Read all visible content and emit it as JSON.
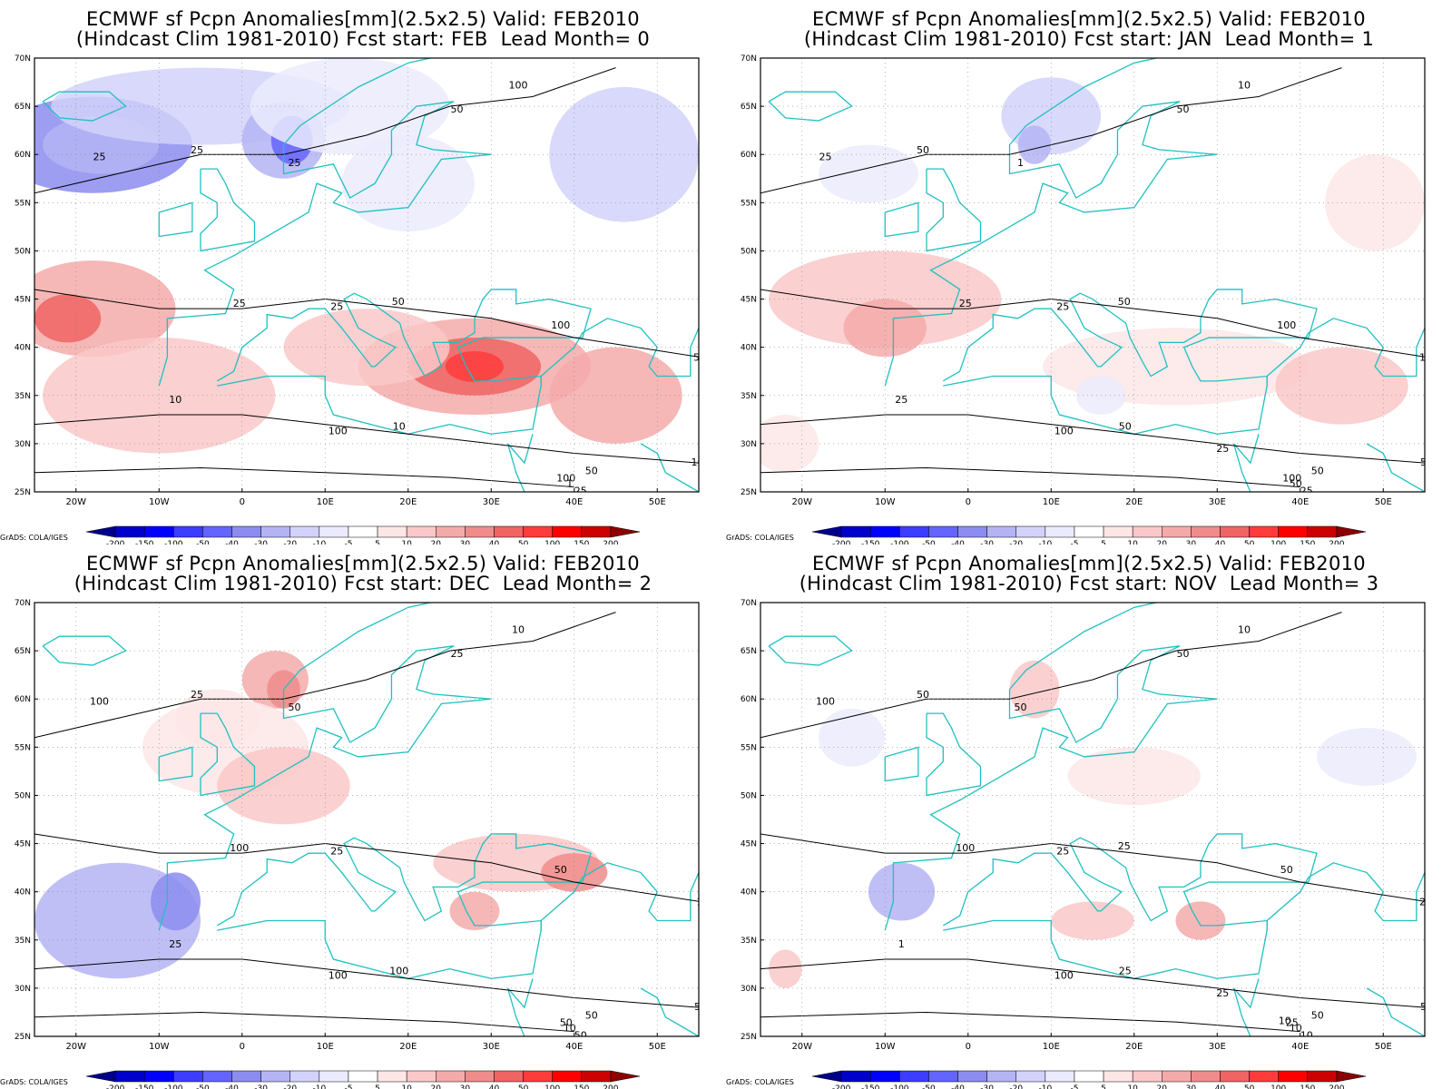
{
  "panels": [
    {
      "title_line1": "ECMWF sf Pcpn Anomalies[mm](2.5x2.5) Valid: FEB2010",
      "title_line2": "(Hindcast Clim 1981-2010) Fcst start: FEB  Lead Month= 0"
    },
    {
      "title_line1": "ECMWF sf Pcpn Anomalies[mm](2.5x2.5) Valid: FEB2010",
      "title_line2": "(Hindcast Clim 1981-2010) Fcst start: JAN  Lead Month= 1"
    },
    {
      "title_line1": "ECMWF sf Pcpn Anomalies[mm](2.5x2.5) Valid: FEB2010",
      "title_line2": "(Hindcast Clim 1981-2010) Fcst start: DEC  Lead Month= 2"
    },
    {
      "title_line1": "ECMWF sf Pcpn Anomalies[mm](2.5x2.5) Valid: FEB2010",
      "title_line2": "(Hindcast Clim 1981-2010) Fcst start: NOV  Lead Month= 3"
    }
  ],
  "lat_labels": [
    "70N",
    "65N",
    "60N",
    "55N",
    "50N",
    "45N",
    "40N",
    "35N",
    "30N",
    "25N"
  ],
  "lon_labels": [
    "20W",
    "10W",
    "0",
    "10E",
    "20E",
    "30E",
    "40E",
    "50E"
  ],
  "colorbar": {
    "labels": [
      "-200",
      "-150",
      "-100",
      "-50",
      "-40",
      "-30",
      "-20",
      "-10",
      "-5",
      "5",
      "10",
      "20",
      "30",
      "40",
      "50",
      "100",
      "150",
      "200"
    ],
    "colors": [
      "#00008b",
      "#0000cd",
      "#0000ff",
      "#3c3cff",
      "#6464ff",
      "#8c8cf0",
      "#b4b4f5",
      "#d2d2fa",
      "#ebebfd",
      "#ffffff",
      "#fde6e6",
      "#fac8c8",
      "#f5aaaa",
      "#f08c8c",
      "#f06464",
      "#ff3c3c",
      "#ff0000",
      "#cd0000",
      "#8b0000"
    ]
  },
  "contour_labels": [
    [
      "25",
      "25",
      "100",
      "100",
      "50",
      "100",
      "100",
      "50",
      "25",
      "25",
      "10",
      "25",
      "100",
      "50",
      "10",
      "1",
      "25",
      "50"
    ],
    [
      "25",
      "25",
      "100",
      "100",
      "50",
      "100",
      "50",
      "50",
      "50",
      "25",
      "50",
      "25",
      "10",
      "10",
      "25",
      "50",
      "1",
      "50",
      "25"
    ],
    [
      "100",
      "100",
      "100",
      "50",
      "25",
      "50",
      "50",
      "50",
      "25",
      "25",
      "100",
      "50",
      "10",
      "1",
      "25",
      "10",
      "50"
    ],
    [
      "100",
      "100",
      "100",
      "25",
      "50",
      "50",
      "50",
      "50",
      "50",
      "25",
      "25",
      "10",
      "10",
      "25",
      "1",
      "10",
      "50",
      "25",
      "25",
      "10"
    ]
  ],
  "credit": "GrADS: COLA/IGES"
}
